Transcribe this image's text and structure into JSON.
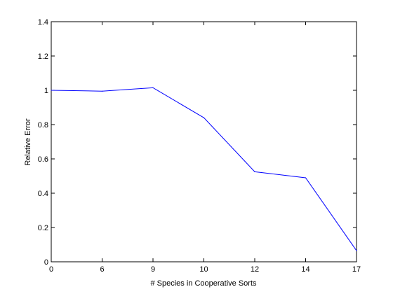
{
  "chart_data": {
    "type": "line",
    "title": "",
    "xlabel": "# Species in Cooperative Sorts",
    "ylabel": "Relative Error",
    "x_ticks": [
      "0",
      "6",
      "9",
      "10",
      "12",
      "14",
      "17"
    ],
    "y_ticks": [
      0,
      0.2,
      0.4,
      0.6,
      0.8,
      1,
      1.2,
      1.4
    ],
    "y_tick_labels": [
      "0",
      "0.2",
      "0.4",
      "0.6",
      "0.8",
      "1",
      "1.2",
      "1.4"
    ],
    "ylim": [
      0,
      1.4
    ],
    "grid": false,
    "series": [
      {
        "color": "#0000ff",
        "points": [
          {
            "x": "0",
            "y": 1.0
          },
          {
            "x": "6",
            "y": 0.995
          },
          {
            "x": "9",
            "y": 1.015
          },
          {
            "x": "10",
            "y": 0.84
          },
          {
            "x": "12",
            "y": 0.525
          },
          {
            "x": "14",
            "y": 0.49
          },
          {
            "x": "17",
            "y": 0.065
          }
        ]
      }
    ]
  }
}
